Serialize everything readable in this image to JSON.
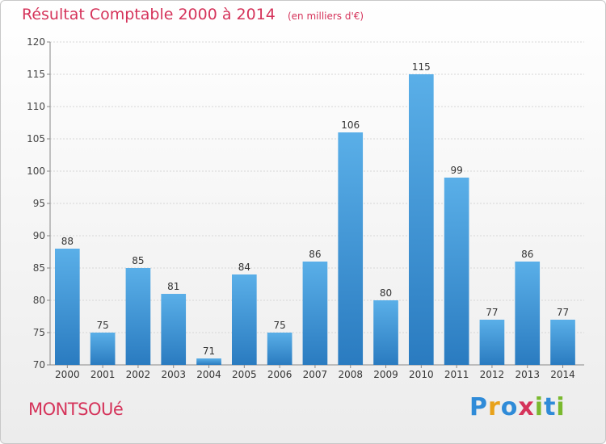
{
  "header": {
    "title": "Résultat Comptable 2000 à 2014",
    "unit": "(en milliers d'€)"
  },
  "footer": {
    "town": "MONTSOUé",
    "brand_letters": [
      "P",
      "r",
      "o",
      "x",
      "i",
      "t",
      "i"
    ]
  },
  "colors": {
    "accent": "#d5335a",
    "bar_top": "#5aafe8",
    "bar_bottom": "#2a7bc0"
  },
  "chart_data": {
    "type": "bar",
    "title": "Résultat Comptable 2000 à 2014",
    "ylabel": "",
    "xlabel": "",
    "ylim": [
      70,
      120
    ],
    "ytick_step": 5,
    "categories": [
      "2000",
      "2001",
      "2002",
      "2003",
      "2004",
      "2005",
      "2006",
      "2007",
      "2008",
      "2009",
      "2010",
      "2011",
      "2012",
      "2013",
      "2014"
    ],
    "values": [
      88,
      75,
      85,
      81,
      71,
      84,
      75,
      86,
      106,
      80,
      115,
      99,
      77,
      86,
      77
    ]
  }
}
